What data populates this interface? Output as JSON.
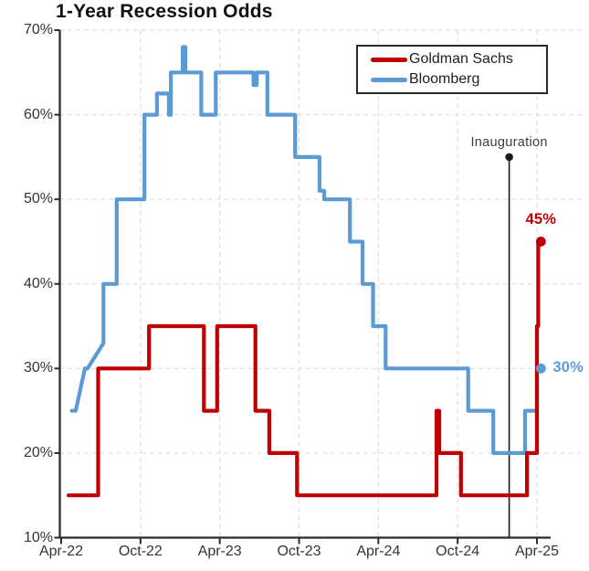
{
  "title": "1-Year Recession Odds",
  "legend": {
    "items": [
      {
        "label": "Goldman Sachs",
        "color": "#c00000"
      },
      {
        "label": "Bloomberg",
        "color": "#5b9bd5"
      }
    ]
  },
  "annotations": {
    "inauguration": {
      "label": "Inauguration",
      "month": 33.9,
      "marker_pct": 55
    }
  },
  "colors": {
    "axis": "#2b2b2b",
    "grid": "#dddddd",
    "text": "#343434",
    "annotation_line": "#1a1a1a"
  },
  "chart_data": {
    "type": "line",
    "title": "1-Year Recession Odds",
    "x_unit": "months since Apr-2022",
    "xlim": [
      0,
      37.2
    ],
    "ylim": [
      10,
      70
    ],
    "grid": "dashed",
    "legend_position": "top-right",
    "x_ticks": [
      {
        "m": 0,
        "label": "Apr-22"
      },
      {
        "m": 6,
        "label": "Oct-22"
      },
      {
        "m": 12,
        "label": "Apr-23"
      },
      {
        "m": 18,
        "label": "Oct-23"
      },
      {
        "m": 24,
        "label": "Apr-24"
      },
      {
        "m": 30,
        "label": "Oct-24"
      },
      {
        "m": 36,
        "label": "Apr-25"
      }
    ],
    "y_ticks": [
      {
        "v": 10,
        "label": "10%"
      },
      {
        "v": 20,
        "label": "20%"
      },
      {
        "v": 30,
        "label": "30%"
      },
      {
        "v": 40,
        "label": "40%"
      },
      {
        "v": 50,
        "label": "50%"
      },
      {
        "v": 60,
        "label": "60%"
      },
      {
        "v": 70,
        "label": "70%"
      }
    ],
    "series": [
      {
        "name": "Goldman Sachs",
        "color": "#c00000",
        "end": {
          "m": 36.3,
          "v": 45,
          "label": "45%"
        },
        "points": [
          [
            0.55,
            15
          ],
          [
            2.8,
            15
          ],
          [
            2.8,
            30
          ],
          [
            6.65,
            30
          ],
          [
            6.65,
            35
          ],
          [
            10.8,
            35
          ],
          [
            10.8,
            25
          ],
          [
            11.8,
            25
          ],
          [
            11.8,
            35
          ],
          [
            14.7,
            35
          ],
          [
            14.7,
            25
          ],
          [
            15.75,
            25
          ],
          [
            15.75,
            20
          ],
          [
            17.85,
            20
          ],
          [
            17.85,
            15
          ],
          [
            28.4,
            15
          ],
          [
            28.4,
            25
          ],
          [
            28.6,
            25
          ],
          [
            28.6,
            20
          ],
          [
            30.25,
            20
          ],
          [
            30.25,
            15
          ],
          [
            35.25,
            15
          ],
          [
            35.25,
            20
          ],
          [
            36.0,
            20
          ],
          [
            36.0,
            35
          ],
          [
            36.1,
            35
          ],
          [
            36.1,
            45
          ],
          [
            36.3,
            45
          ]
        ]
      },
      {
        "name": "Bloomberg",
        "color": "#5b9bd5",
        "end": {
          "m": 36.3,
          "v": 30,
          "label": "30%"
        },
        "points": [
          [
            0.8,
            25
          ],
          [
            1.1,
            25
          ],
          [
            1.8,
            30
          ],
          [
            2.0,
            30
          ],
          [
            3.2,
            33
          ],
          [
            3.2,
            40
          ],
          [
            4.2,
            40
          ],
          [
            4.2,
            50
          ],
          [
            6.3,
            50
          ],
          [
            6.3,
            60
          ],
          [
            7.25,
            60
          ],
          [
            7.25,
            62.5
          ],
          [
            8.15,
            62.5
          ],
          [
            8.15,
            60
          ],
          [
            8.3,
            60
          ],
          [
            8.3,
            65
          ],
          [
            9.2,
            65
          ],
          [
            9.2,
            68
          ],
          [
            9.4,
            68
          ],
          [
            9.4,
            65
          ],
          [
            10.6,
            65
          ],
          [
            10.6,
            60
          ],
          [
            11.7,
            60
          ],
          [
            11.7,
            65
          ],
          [
            14.55,
            65
          ],
          [
            14.55,
            63.5
          ],
          [
            14.8,
            63.5
          ],
          [
            14.8,
            65
          ],
          [
            15.6,
            65
          ],
          [
            15.6,
            60
          ],
          [
            17.7,
            60
          ],
          [
            17.7,
            55
          ],
          [
            19.55,
            55
          ],
          [
            19.55,
            51
          ],
          [
            19.9,
            51
          ],
          [
            19.9,
            50
          ],
          [
            21.85,
            50
          ],
          [
            21.85,
            45
          ],
          [
            22.8,
            45
          ],
          [
            22.8,
            40
          ],
          [
            23.6,
            40
          ],
          [
            23.6,
            35
          ],
          [
            24.55,
            35
          ],
          [
            24.55,
            30
          ],
          [
            30.8,
            30
          ],
          [
            30.8,
            25
          ],
          [
            32.7,
            25
          ],
          [
            32.7,
            20
          ],
          [
            35.1,
            20
          ],
          [
            35.1,
            25
          ],
          [
            36.0,
            25
          ],
          [
            36.0,
            30
          ],
          [
            36.3,
            30
          ]
        ]
      }
    ]
  }
}
